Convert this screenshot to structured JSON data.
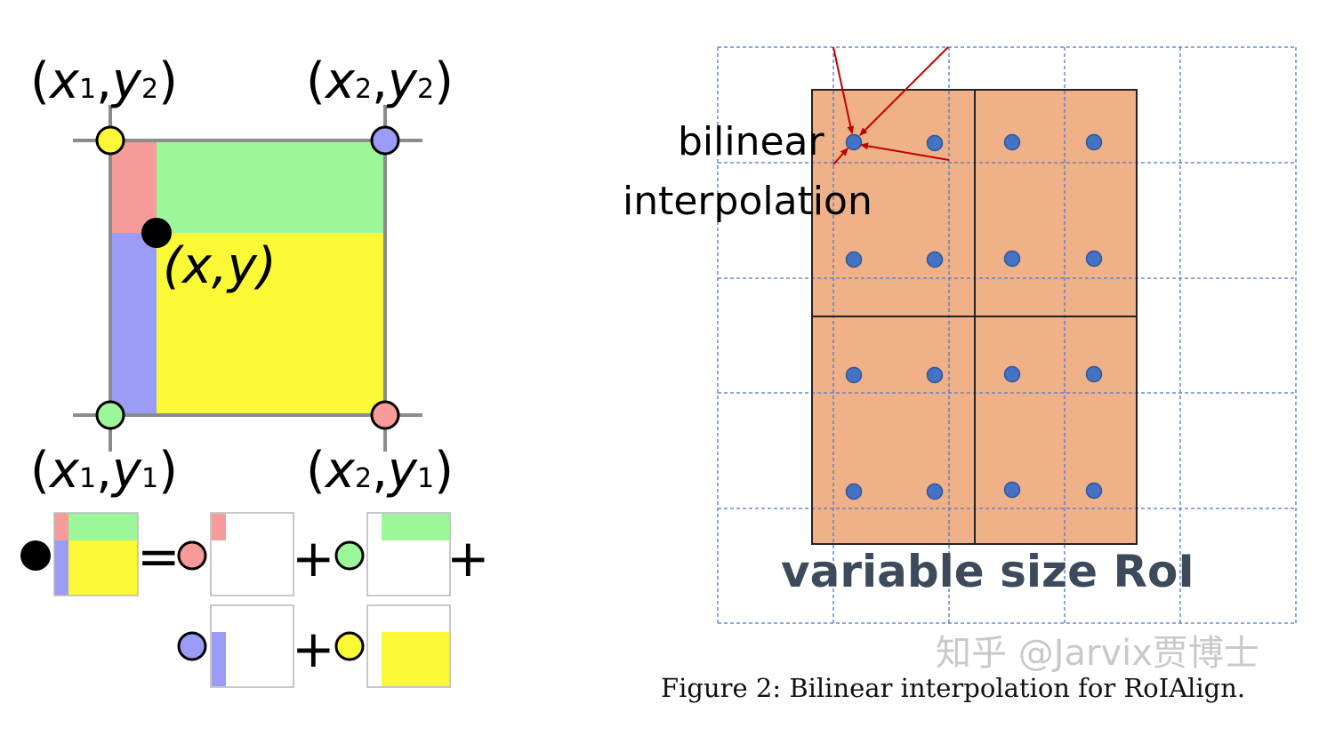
{
  "left_panel": {
    "corner_labels": {
      "top_left": {
        "open": "(",
        "a": "x",
        "a_sub": "1",
        "sep": ",",
        "b": "y",
        "b_sub": "2",
        "close": ")"
      },
      "top_right": {
        "open": "(",
        "a": "x",
        "a_sub": "2",
        "sep": ",",
        "b": "y",
        "b_sub": "2",
        "close": ")"
      },
      "bottom_left": {
        "open": "(",
        "a": "x",
        "a_sub": "1",
        "sep": ",",
        "b": "y",
        "b_sub": "1",
        "close": ")"
      },
      "bottom_right": {
        "open": "(",
        "a": "x",
        "a_sub": "2",
        "sep": ",",
        "b": "y",
        "b_sub": "1",
        "close": ")"
      }
    },
    "point_label": "(x,y)",
    "equation_ops": {
      "equals": "=",
      "plus1": "+",
      "plus2": "+",
      "plus3": "+"
    },
    "colors": {
      "red": "#f79a9a",
      "green": "#9cf79a",
      "blue": "#9a9cf7",
      "yellow": "#fbf935",
      "frame": "#8c8c8c",
      "point": "#000000"
    }
  },
  "right_panel": {
    "annotation_line1": "bilinear",
    "annotation_line2": "interpolation",
    "roi_label": "variable size RoI",
    "colors": {
      "roi_fill": "#f0b088",
      "grid_line": "#4a78c8",
      "sample_point": "#4472c4",
      "arrow": "#c00000"
    }
  },
  "caption": "Figure 2: Bilinear interpolation for RoIAlign.",
  "watermark": "知乎 @Jarvix贾博士"
}
